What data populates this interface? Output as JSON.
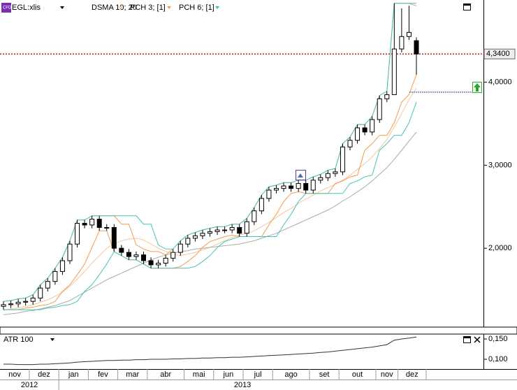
{
  "chart_data": {
    "type": "candlestick",
    "symbol": "EGL:xlis",
    "open": [
      1.3,
      1.32,
      1.33,
      1.35,
      1.36,
      1.4,
      1.52,
      1.6,
      1.72,
      1.85,
      2.05,
      2.3,
      2.28,
      2.35,
      2.25,
      2.25,
      2.0,
      1.95,
      1.9,
      1.92,
      1.85,
      1.8,
      1.82,
      1.88,
      1.95,
      2.05,
      2.12,
      2.15,
      2.18,
      2.2,
      2.22,
      2.22,
      2.25,
      2.18,
      2.32,
      2.45,
      2.6,
      2.7,
      2.72,
      2.75,
      2.72,
      2.78,
      2.7,
      2.82,
      2.85,
      2.9,
      2.92,
      3.22,
      3.3,
      3.45,
      3.4,
      3.55,
      3.8,
      3.85,
      4.4,
      4.55,
      4.5
    ],
    "high": [
      1.36,
      1.37,
      1.39,
      1.4,
      1.44,
      1.56,
      1.64,
      1.76,
      1.89,
      2.09,
      2.34,
      2.34,
      2.39,
      2.39,
      2.29,
      2.29,
      2.04,
      1.99,
      1.96,
      1.96,
      1.89,
      1.86,
      1.92,
      1.99,
      2.09,
      2.16,
      2.19,
      2.22,
      2.24,
      2.26,
      2.26,
      2.29,
      2.29,
      2.36,
      2.49,
      2.64,
      2.74,
      2.76,
      2.79,
      2.79,
      2.82,
      2.82,
      2.86,
      2.89,
      2.94,
      2.96,
      3.26,
      3.34,
      3.49,
      3.49,
      3.59,
      3.84,
      3.89,
      4.95,
      4.89,
      4.92,
      4.54
    ],
    "low": [
      1.26,
      1.28,
      1.29,
      1.31,
      1.32,
      1.36,
      1.48,
      1.56,
      1.68,
      1.81,
      2.01,
      2.24,
      2.24,
      2.21,
      2.21,
      1.96,
      1.91,
      1.86,
      1.86,
      1.81,
      1.76,
      1.76,
      1.78,
      1.84,
      1.91,
      2.01,
      2.08,
      2.11,
      2.14,
      2.16,
      2.18,
      2.18,
      2.14,
      2.14,
      2.28,
      2.41,
      2.56,
      2.66,
      2.68,
      2.68,
      2.68,
      2.66,
      2.66,
      2.78,
      2.81,
      2.86,
      2.88,
      3.18,
      3.26,
      3.36,
      3.36,
      3.51,
      3.76,
      3.85,
      4.36,
      4.51,
      4.09
    ],
    "close": [
      1.32,
      1.33,
      1.35,
      1.36,
      1.4,
      1.52,
      1.6,
      1.72,
      1.85,
      2.05,
      2.3,
      2.28,
      2.35,
      2.25,
      2.25,
      2.0,
      1.95,
      1.9,
      1.92,
      1.85,
      1.8,
      1.82,
      1.88,
      1.95,
      2.05,
      2.12,
      2.15,
      2.18,
      2.2,
      2.22,
      2.22,
      2.25,
      2.18,
      2.32,
      2.45,
      2.6,
      2.7,
      2.72,
      2.75,
      2.72,
      2.78,
      2.7,
      2.82,
      2.85,
      2.9,
      2.92,
      3.22,
      3.3,
      3.45,
      3.4,
      3.55,
      3.8,
      3.85,
      4.4,
      4.55,
      4.6,
      4.34
    ],
    "ylim": [
      1.05,
      4.99
    ],
    "yticks": [
      {
        "value": 2,
        "label": "2,0000"
      },
      {
        "value": 3,
        "label": "3,0000"
      },
      {
        "value": 4,
        "label": "4,0000"
      }
    ],
    "indicators": [
      {
        "name": "DSMA 10; 20",
        "color": "#f5c9a2",
        "lines": [
          {
            "color": "#f8c49a",
            "values": [
              1.25,
              1.27,
              1.28,
              1.3,
              1.32,
              1.35,
              1.38,
              1.42,
              1.47,
              1.54,
              1.63,
              1.72,
              1.82,
              1.91,
              2.0,
              2.05,
              2.09,
              2.11,
              2.12,
              2.1,
              2.05,
              2.0,
              1.96,
              1.93,
              1.91,
              1.93,
              1.95,
              1.98,
              2.01,
              2.05,
              2.09,
              2.13,
              2.16,
              2.18,
              2.21,
              2.26,
              2.31,
              2.37,
              2.43,
              2.48,
              2.54,
              2.59,
              2.64,
              2.69,
              2.73,
              2.77,
              2.82,
              2.88,
              2.95,
              3.02,
              3.1,
              3.2,
              3.31,
              3.46,
              3.62,
              3.79,
              3.93
            ]
          },
          {
            "color": "#aaaaaa",
            "values": [
              1.2,
              1.21,
              1.22,
              1.24,
              1.25,
              1.27,
              1.29,
              1.31,
              1.34,
              1.37,
              1.42,
              1.47,
              1.52,
              1.57,
              1.62,
              1.66,
              1.7,
              1.74,
              1.78,
              1.82,
              1.86,
              1.89,
              1.92,
              1.94,
              1.96,
              1.97,
              1.99,
              2.0,
              2.01,
              2.02,
              2.03,
              2.04,
              2.05,
              2.07,
              2.09,
              2.12,
              2.15,
              2.18,
              2.22,
              2.26,
              2.3,
              2.34,
              2.38,
              2.42,
              2.46,
              2.51,
              2.57,
              2.62,
              2.68,
              2.74,
              2.81,
              2.89,
              2.97,
              3.07,
              3.18,
              3.29,
              3.4
            ]
          }
        ]
      },
      {
        "name": "PCH 3; [1]",
        "color": "#f29a50",
        "lines": [
          {
            "color": "#f29a50",
            "values": [
              1.36,
              1.37,
              1.39,
              1.4,
              1.44,
              1.56,
              1.64,
              1.76,
              1.89,
              2.09,
              2.34,
              2.34,
              2.39,
              2.39,
              2.39,
              2.39,
              2.29,
              2.29,
              2.04,
              1.99,
              1.96,
              1.96,
              1.92,
              1.99,
              2.09,
              2.16,
              2.19,
              2.22,
              2.24,
              2.26,
              2.26,
              2.29,
              2.29,
              2.36,
              2.49,
              2.64,
              2.74,
              2.76,
              2.79,
              2.79,
              2.82,
              2.82,
              2.86,
              2.89,
              2.94,
              2.96,
              3.26,
              3.34,
              3.49,
              3.49,
              3.59,
              3.84,
              3.89,
              4.95,
              4.95,
              4.95,
              4.92
            ]
          },
          {
            "color": "#f29a50",
            "values": [
              1.26,
              1.26,
              1.26,
              1.28,
              1.29,
              1.31,
              1.32,
              1.36,
              1.48,
              1.56,
              1.68,
              1.81,
              2.01,
              2.21,
              2.21,
              1.96,
              1.91,
              1.86,
              1.86,
              1.81,
              1.76,
              1.76,
              1.76,
              1.76,
              1.78,
              1.84,
              1.91,
              2.01,
              2.08,
              2.11,
              2.14,
              2.16,
              2.14,
              2.14,
              2.14,
              2.14,
              2.28,
              2.41,
              2.56,
              2.66,
              2.68,
              2.66,
              2.66,
              2.66,
              2.66,
              2.78,
              2.81,
              2.86,
              2.88,
              3.18,
              3.26,
              3.36,
              3.36,
              3.51,
              3.76,
              3.85,
              4.09
            ]
          }
        ]
      },
      {
        "name": "PCH 6; [1]",
        "color": "#33bbbb",
        "lines": [
          {
            "color": "#44c4bc",
            "values": [
              1.36,
              1.37,
              1.39,
              1.4,
              1.44,
              1.56,
              1.64,
              1.76,
              1.89,
              2.09,
              2.34,
              2.34,
              2.39,
              2.39,
              2.39,
              2.39,
              2.39,
              2.39,
              2.39,
              2.29,
              2.29,
              2.04,
              1.99,
              1.99,
              2.09,
              2.16,
              2.19,
              2.22,
              2.24,
              2.26,
              2.26,
              2.29,
              2.29,
              2.36,
              2.49,
              2.64,
              2.74,
              2.76,
              2.79,
              2.79,
              2.82,
              2.82,
              2.86,
              2.89,
              2.94,
              2.96,
              3.26,
              3.34,
              3.49,
              3.49,
              3.59,
              3.84,
              3.89,
              4.95,
              4.95,
              4.95,
              4.95
            ]
          },
          {
            "color": "#44c4bc",
            "values": [
              1.26,
              1.26,
              1.26,
              1.26,
              1.26,
              1.26,
              1.28,
              1.29,
              1.31,
              1.32,
              1.36,
              1.48,
              1.56,
              1.68,
              1.81,
              1.96,
              1.91,
              1.86,
              1.86,
              1.81,
              1.76,
              1.76,
              1.76,
              1.76,
              1.76,
              1.76,
              1.78,
              1.84,
              1.91,
              2.01,
              2.08,
              2.11,
              2.14,
              2.14,
              2.14,
              2.14,
              2.14,
              2.14,
              2.28,
              2.41,
              2.56,
              2.66,
              2.66,
              2.66,
              2.66,
              2.66,
              2.66,
              2.78,
              2.81,
              2.86,
              2.88,
              3.18,
              3.26,
              3.36,
              3.36,
              3.51,
              3.76
            ]
          }
        ]
      }
    ],
    "last_price": {
      "value": 4.34,
      "label": "4,3400",
      "color": "#e02020"
    },
    "alert_level": {
      "value": 3.88,
      "color": "#3030c0"
    },
    "months": [
      "nov",
      "dez",
      "jan",
      "fev",
      "mar",
      "abr",
      "mai",
      "jun",
      "jul",
      "ago",
      "set",
      "out",
      "nov",
      "dez"
    ],
    "years": [
      "2012",
      "2013"
    ],
    "lower_pane": {
      "type": "line",
      "name": "ATR 100",
      "color": "#333333",
      "values": [
        0.088,
        0.088,
        0.087,
        0.087,
        0.087,
        0.088,
        0.088,
        0.089,
        0.09,
        0.091,
        0.093,
        0.094,
        0.095,
        0.096,
        0.097,
        0.097,
        0.098,
        0.098,
        0.099,
        0.099,
        0.1,
        0.1,
        0.1,
        0.101,
        0.101,
        0.102,
        0.102,
        0.103,
        0.103,
        0.104,
        0.104,
        0.105,
        0.105,
        0.106,
        0.107,
        0.108,
        0.109,
        0.11,
        0.111,
        0.112,
        0.113,
        0.114,
        0.115,
        0.117,
        0.118,
        0.12,
        0.122,
        0.124,
        0.126,
        0.128,
        0.13,
        0.133,
        0.136,
        0.147,
        0.15,
        0.152,
        0.155
      ],
      "ylim": [
        0.076,
        0.162
      ],
      "yticks": [
        {
          "value": 0.15,
          "label": "0,150"
        },
        {
          "value": 0.1,
          "label": "0,100"
        }
      ]
    }
  }
}
